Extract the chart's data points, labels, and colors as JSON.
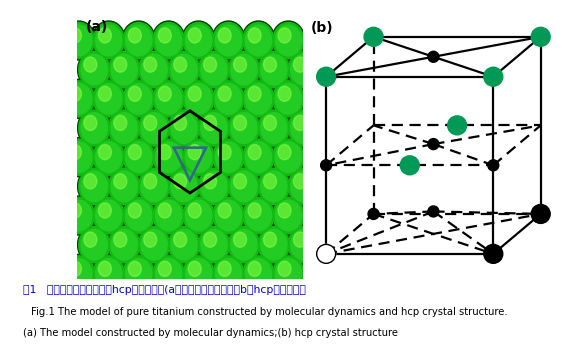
{
  "figure_width": 5.67,
  "figure_height": 3.49,
  "bg_color": "#ffffff",
  "caption_chinese": "图1   分子动力学纯钛模型与hcp晶体结构。(a）分子动力学模型；（b）hcp晶体结构图",
  "caption_english": "Fig.1 The model of pure titanium constructed by molecular dynamics and hcp crystal structure.",
  "caption_sub": "(a) The model constructed by molecular dynamics;(b) hcp crystal structure",
  "label_a": "(a)",
  "label_b": "(b)",
  "chinese_color": "#0000cc",
  "english_color": "#000000",
  "sub_color": "#000000",
  "teal_color": "#009955",
  "atom_green_main": "#22cc22",
  "atom_green_dark": "#005500",
  "atom_green_hi": "#88ff88",
  "atom_bg": "#00aa00"
}
